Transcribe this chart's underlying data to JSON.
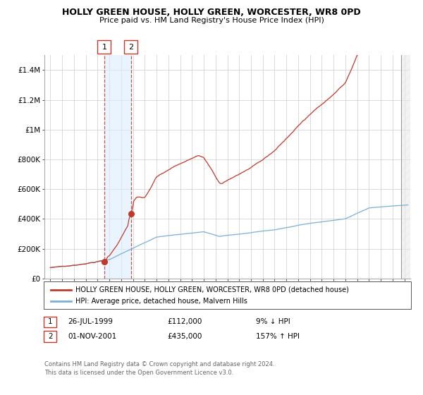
{
  "title": "HOLLY GREEN HOUSE, HOLLY GREEN, WORCESTER, WR8 0PD",
  "subtitle": "Price paid vs. HM Land Registry's House Price Index (HPI)",
  "legend_line1": "HOLLY GREEN HOUSE, HOLLY GREEN, WORCESTER, WR8 0PD (detached house)",
  "legend_line2": "HPI: Average price, detached house, Malvern Hills",
  "table": [
    {
      "num": "1",
      "date": "26-JUL-1999",
      "price": "£112,000",
      "hpi": "9% ↓ HPI"
    },
    {
      "num": "2",
      "date": "01-NOV-2001",
      "price": "£435,000",
      "hpi": "157% ↑ HPI"
    }
  ],
  "footnote1": "Contains HM Land Registry data © Crown copyright and database right 2024.",
  "footnote2": "This data is licensed under the Open Government Licence v3.0.",
  "sale1_year": 1999.57,
  "sale1_price": 112000,
  "sale2_year": 2001.84,
  "sale2_price": 435000,
  "hpi_color": "#7bafd4",
  "price_color": "#c0392b",
  "dot_color": "#c0392b",
  "shade_color": "#ddeeff",
  "background_color": "#ffffff",
  "grid_color": "#cccccc",
  "ylim": [
    0,
    1500000
  ],
  "xlim_start": 1994.5,
  "xlim_end": 2025.5,
  "hatch_start": 2024.75
}
